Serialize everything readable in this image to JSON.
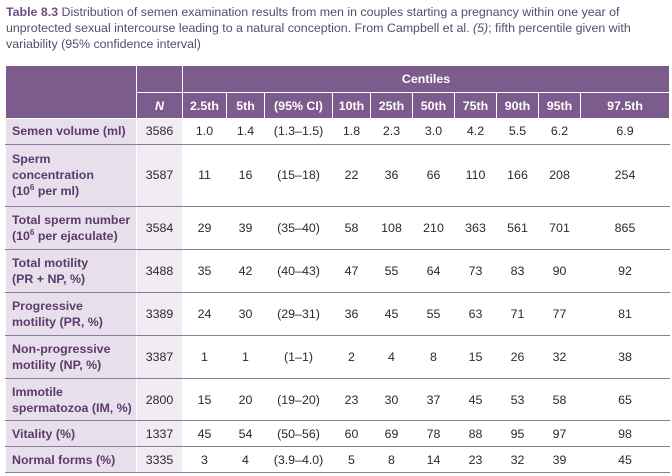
{
  "caption": {
    "label": "Table 8.3",
    "text_before": " Distribution of semen examination results from men in couples starting a pregnancy within one year of unprotected sexual intercourse leading to a natural conception. From Campbell et al. ",
    "reference": "(5)",
    "text_after": "; fifth percentile given with variability (95% confidence interval)"
  },
  "header": {
    "centiles_label": "Centiles",
    "n_label": "N",
    "columns": [
      "2.5th",
      "5th",
      "(95% CI)",
      "10th",
      "25th",
      "50th",
      "75th",
      "90th",
      "95th",
      "97.5th"
    ]
  },
  "rows": [
    {
      "label": [
        "Semen volume (ml)"
      ],
      "n": "3586",
      "values": [
        "1.0",
        "1.4",
        "(1.3–1.5)",
        "1.8",
        "2.3",
        "3.0",
        "4.2",
        "5.5",
        "6.2",
        "6.9"
      ]
    },
    {
      "label": [
        "Sperm",
        "concentration",
        "(10",
        "6",
        " per ml)"
      ],
      "n": "3587",
      "values": [
        "11",
        "16",
        "(15–18)",
        "22",
        "36",
        "66",
        "110",
        "166",
        "208",
        "254"
      ]
    },
    {
      "label": [
        "Total sperm number",
        "(10",
        "6",
        " per ejaculate)"
      ],
      "n": "3584",
      "values": [
        "29",
        "39",
        "(35–40)",
        "58",
        "108",
        "210",
        "363",
        "561",
        "701",
        "865"
      ]
    },
    {
      "label": [
        "Total motility",
        "(PR + NP, %)"
      ],
      "n": "3488",
      "values": [
        "35",
        "42",
        "(40–43)",
        "47",
        "55",
        "64",
        "73",
        "83",
        "90",
        "92"
      ]
    },
    {
      "label": [
        "Progressive",
        "motility (PR, %)"
      ],
      "n": "3389",
      "values": [
        "24",
        "30",
        "(29–31)",
        "36",
        "45",
        "55",
        "63",
        "71",
        "77",
        "81"
      ]
    },
    {
      "label": [
        "Non-progressive",
        "motility (NP, %)"
      ],
      "n": "3387",
      "values": [
        "1",
        "1",
        "(1–1)",
        "2",
        "4",
        "8",
        "15",
        "26",
        "32",
        "38"
      ]
    },
    {
      "label": [
        "Immotile",
        "spermatozoa (IM, %)"
      ],
      "n": "2800",
      "values": [
        "15",
        "20",
        "(19–20)",
        "23",
        "30",
        "37",
        "45",
        "53",
        "58",
        "65"
      ]
    },
    {
      "label": [
        "Vitality (%)"
      ],
      "n": "1337",
      "values": [
        "45",
        "54",
        "(50–56)",
        "60",
        "69",
        "78",
        "88",
        "95",
        "97",
        "98"
      ]
    },
    {
      "label": [
        "Normal forms (%)"
      ],
      "n": "3335",
      "values": [
        "3",
        "4",
        "(3.9–4.0)",
        "5",
        "8",
        "14",
        "23",
        "32",
        "39",
        "45"
      ]
    }
  ]
}
